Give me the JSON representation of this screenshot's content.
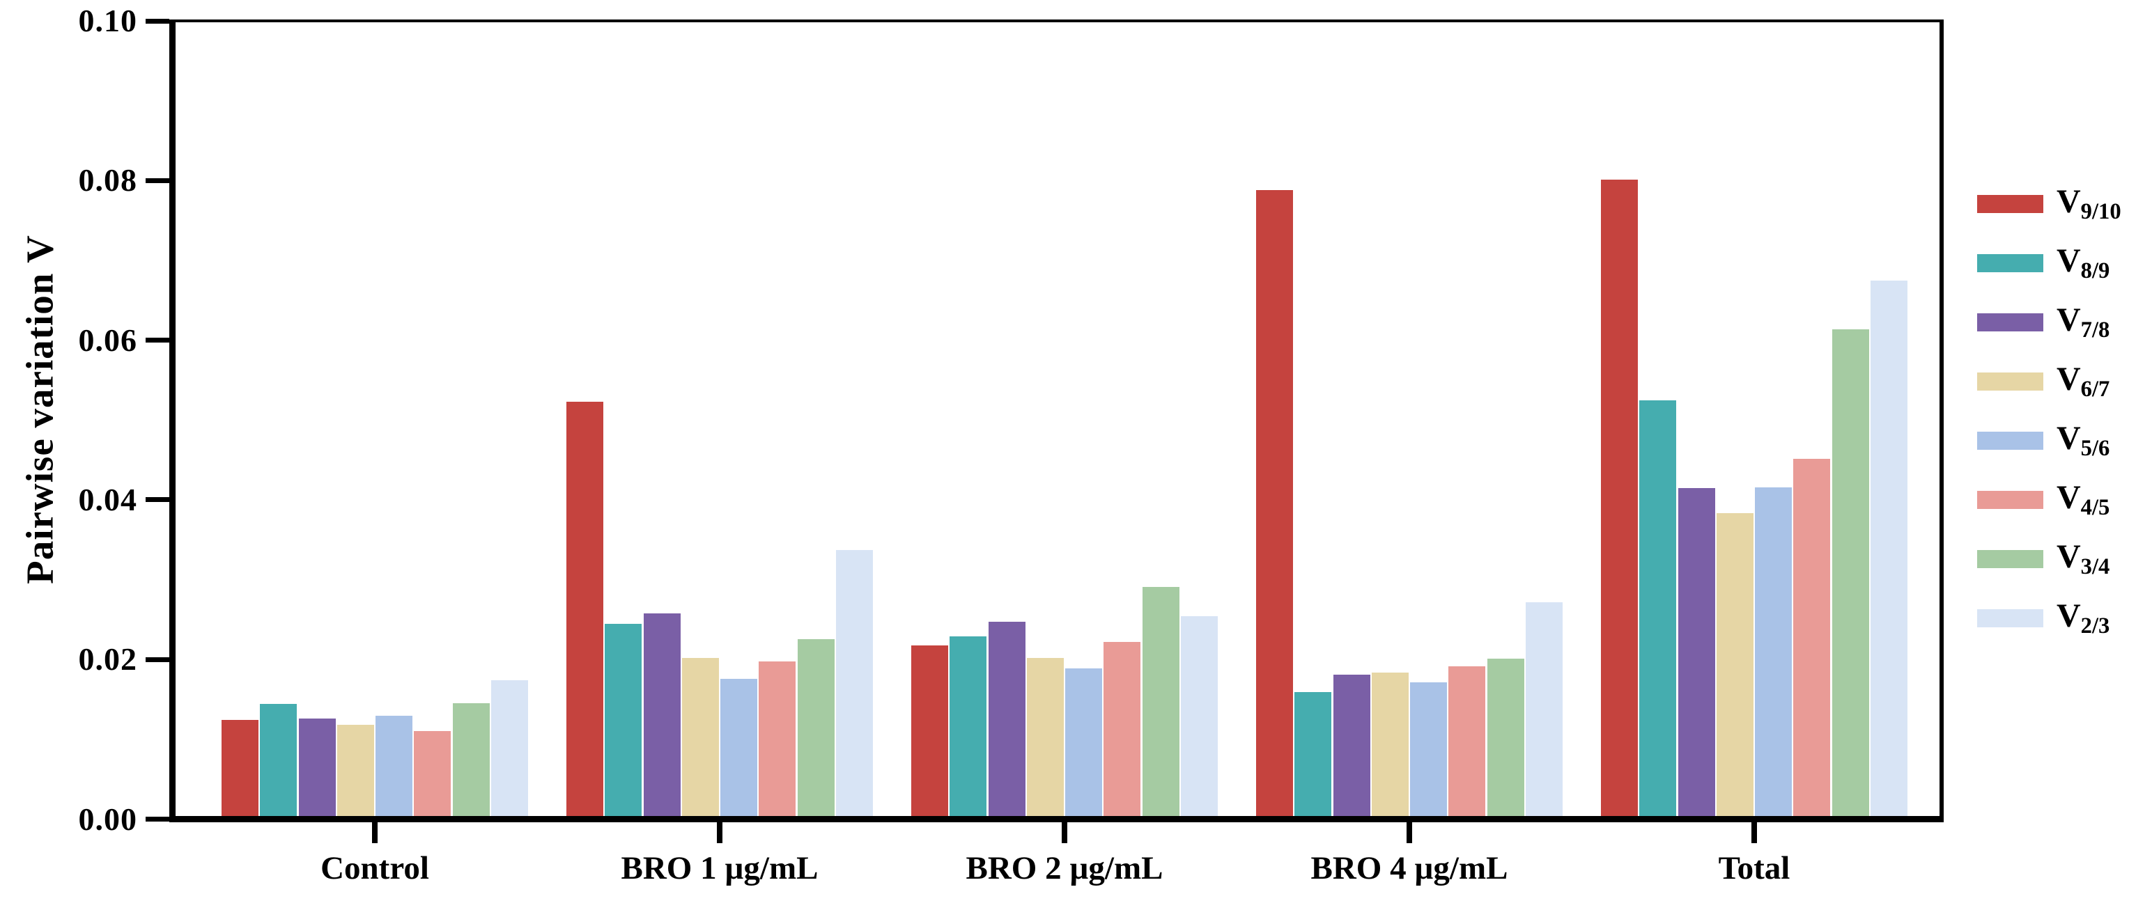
{
  "figure": {
    "y_axis_title": "Pairwise variation V"
  },
  "chart_data": {
    "type": "bar",
    "title": "",
    "xlabel": "",
    "ylabel": "Pairwise variation V",
    "ylim": [
      0,
      0.1
    ],
    "grid": false,
    "legend_position": "right-outside",
    "axis_color": "#000000",
    "background_color": "#ffffff",
    "yticks": [
      {
        "value": 0.0,
        "label": "0.00"
      },
      {
        "value": 0.02,
        "label": "0.02"
      },
      {
        "value": 0.04,
        "label": "0.04"
      },
      {
        "value": 0.06,
        "label": "0.06"
      },
      {
        "value": 0.08,
        "label": "0.08"
      },
      {
        "value": 0.1,
        "label": "0.10"
      }
    ],
    "categories": [
      "Control",
      "BRO 1 µg/mL",
      "BRO 2 µg/mL",
      "BRO 4 µg/mL",
      "Total"
    ],
    "series": [
      {
        "name": "V9/10",
        "label_main": "V",
        "label_sub": "9/10",
        "color": "#C5433E",
        "values": [
          0.0121,
          0.0522,
          0.0215,
          0.0789,
          0.0802
        ]
      },
      {
        "name": "V8/9",
        "label_main": "V",
        "label_sub": "8/9",
        "color": "#45ADAF",
        "values": [
          0.0141,
          0.0242,
          0.0226,
          0.0156,
          0.0524
        ]
      },
      {
        "name": "V7/8",
        "label_main": "V",
        "label_sub": "7/8",
        "color": "#7A5FA6",
        "values": [
          0.0123,
          0.0255,
          0.0245,
          0.0178,
          0.0413
        ]
      },
      {
        "name": "V6/7",
        "label_main": "V",
        "label_sub": "6/7",
        "color": "#E6D6A5",
        "values": [
          0.0115,
          0.0199,
          0.0199,
          0.0181,
          0.0382
        ]
      },
      {
        "name": "V5/6",
        "label_main": "V",
        "label_sub": "5/6",
        "color": "#A9C2E7",
        "values": [
          0.0126,
          0.0173,
          0.0186,
          0.0168,
          0.0414
        ]
      },
      {
        "name": "V4/5",
        "label_main": "V",
        "label_sub": "4/5",
        "color": "#E99B96",
        "values": [
          0.0107,
          0.0195,
          0.0219,
          0.0189,
          0.045
        ]
      },
      {
        "name": "V3/4",
        "label_main": "V",
        "label_sub": "3/4",
        "color": "#A5CBA2",
        "values": [
          0.0142,
          0.0223,
          0.0289,
          0.0198,
          0.0613
        ]
      },
      {
        "name": "V2/3",
        "label_main": "V",
        "label_sub": "2/3",
        "color": "#D8E4F5",
        "values": [
          0.0171,
          0.0335,
          0.0252,
          0.0269,
          0.0675
        ]
      }
    ]
  }
}
